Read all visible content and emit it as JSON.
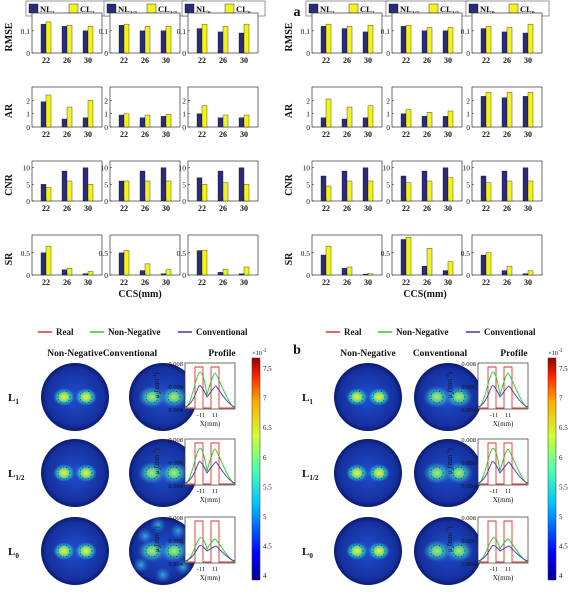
{
  "panel_letters": {
    "a": "a",
    "b": "b"
  },
  "legends_top": [
    {
      "nl": "NL",
      "nl_sub": "1",
      "cl": "CL",
      "cl_sub": "1"
    },
    {
      "nl": "NL",
      "nl_sub": "1/2",
      "cl": "CL",
      "cl_sub": "1/2"
    },
    {
      "nl": "NL",
      "nl_sub": "0",
      "cl": "CL",
      "cl_sub": "0"
    }
  ],
  "metric_labels": [
    "RMSE",
    "AR",
    "CNR",
    "SR"
  ],
  "xlabel": "CCS(mm)",
  "colors": {
    "nl": "#2b2b7a",
    "cl": "#f2f21e",
    "real": "#e0302a",
    "nonneg": "#2fc42f",
    "conv": "#3a3aa8"
  },
  "chart_data": {
    "type": "bar",
    "categories": [
      "22",
      "26",
      "30"
    ],
    "yticks": {
      "RMSE": [
        "0",
        "0.1"
      ],
      "AR": [
        "0",
        "1",
        "2"
      ],
      "CNR": [
        "0",
        "5",
        "10"
      ],
      "SR": [
        "0",
        "0.5"
      ]
    },
    "ylim": {
      "RMSE": [
        0,
        0.18
      ],
      "AR": [
        0,
        3
      ],
      "CNR": [
        0,
        12
      ],
      "SR": [
        0,
        0.9
      ]
    },
    "panels": {
      "a": {
        "RMSE": [
          {
            "nl": [
              0.13,
              0.12,
              0.1
            ],
            "cl": [
              0.14,
              0.125,
              0.12
            ]
          },
          {
            "nl": [
              0.125,
              0.1,
              0.1
            ],
            "cl": [
              0.13,
              0.12,
              0.12
            ]
          },
          {
            "nl": [
              0.11,
              0.095,
              0.09
            ],
            "cl": [
              0.13,
              0.12,
              0.13
            ]
          }
        ],
        "AR": [
          {
            "nl": [
              1.9,
              0.6,
              0.7
            ],
            "cl": [
              2.4,
              1.5,
              2.0
            ]
          },
          {
            "nl": [
              0.9,
              0.7,
              0.8
            ],
            "cl": [
              1.0,
              0.9,
              0.95
            ]
          },
          {
            "nl": [
              1.0,
              0.7,
              0.7
            ],
            "cl": [
              1.6,
              0.9,
              0.9
            ]
          }
        ],
        "CNR": [
          {
            "nl": [
              5.0,
              9.0,
              10.0
            ],
            "cl": [
              4.0,
              6.0,
              5.0
            ]
          },
          {
            "nl": [
              6.0,
              9.0,
              10.0
            ],
            "cl": [
              6.0,
              6.0,
              6.0
            ]
          },
          {
            "nl": [
              7.0,
              9.0,
              10.0
            ],
            "cl": [
              5.0,
              5.5,
              5.0
            ]
          }
        ],
        "SR": [
          {
            "nl": [
              0.5,
              0.12,
              0.03
            ],
            "cl": [
              0.65,
              0.15,
              0.08
            ]
          },
          {
            "nl": [
              0.5,
              0.1,
              0.03
            ],
            "cl": [
              0.55,
              0.25,
              0.12
            ]
          },
          {
            "nl": [
              0.55,
              0.06,
              0.03
            ],
            "cl": [
              0.56,
              0.13,
              0.18
            ]
          }
        ]
      },
      "b": {
        "RMSE": [
          {
            "nl": [
              0.12,
              0.11,
              0.095
            ],
            "cl": [
              0.13,
              0.12,
              0.125
            ]
          },
          {
            "nl": [
              0.12,
              0.1,
              0.1
            ],
            "cl": [
              0.125,
              0.115,
              0.115
            ]
          },
          {
            "nl": [
              0.11,
              0.095,
              0.09
            ],
            "cl": [
              0.12,
              0.115,
              0.13
            ]
          }
        ],
        "AR": [
          {
            "nl": [
              0.7,
              0.6,
              0.7
            ],
            "cl": [
              2.1,
              1.5,
              1.6
            ]
          },
          {
            "nl": [
              1.0,
              0.8,
              0.8
            ],
            "cl": [
              1.3,
              1.1,
              1.2
            ]
          },
          {
            "nl": [
              2.3,
              2.2,
              2.3
            ],
            "cl": [
              2.6,
              2.6,
              2.6
            ]
          }
        ],
        "CNR": [
          {
            "nl": [
              7.5,
              9.0,
              10.0
            ],
            "cl": [
              4.5,
              6.0,
              6.0
            ]
          },
          {
            "nl": [
              7.5,
              9.0,
              10.0
            ],
            "cl": [
              5.5,
              6.0,
              7.0
            ]
          },
          {
            "nl": [
              7.5,
              9.0,
              10.0
            ],
            "cl": [
              5.5,
              6.0,
              6.0
            ]
          }
        ],
        "SR": [
          {
            "nl": [
              0.45,
              0.15,
              0.02
            ],
            "cl": [
              0.65,
              0.18,
              0.03
            ]
          },
          {
            "nl": [
              0.8,
              0.2,
              0.1
            ],
            "cl": [
              0.85,
              0.6,
              0.3
            ]
          },
          {
            "nl": [
              0.45,
              0.1,
              0.03
            ],
            "cl": [
              0.5,
              0.2,
              0.1
            ]
          }
        ]
      }
    }
  },
  "legend_bottom": {
    "real": "Real",
    "nonneg": "Non-Negative",
    "conv": "Conventional"
  },
  "col_titles": {
    "nonneg": "Non-Negative",
    "conv": "Conventional",
    "profile": "Profile"
  },
  "rows": [
    {
      "base": "L",
      "sub": "1"
    },
    {
      "base": "L",
      "sub": "1/2"
    },
    {
      "base": "L",
      "sub": "0"
    }
  ],
  "profile_axis": {
    "yticks": [
      "0.008",
      "0.006",
      "0.004"
    ],
    "xticks": [
      "-11",
      "11"
    ],
    "xlabel": "X(mm)",
    "ylabel_base": "μ",
    "ylabel_sub": "a",
    "ylabel_unit": "(mm",
    "ylabel_exp": "-1",
    "ylabel_close": ")"
  },
  "colorbar": {
    "exp_base": "×10",
    "exp_pow": "-3",
    "ticks_a": [
      "7.5",
      "7",
      "6.5",
      "6",
      "5.5",
      "5",
      "4.5",
      "4"
    ],
    "ticks_b": [
      "7.5",
      "7",
      "6.5",
      "6",
      "5.5",
      "5",
      "4.5",
      "4"
    ]
  }
}
